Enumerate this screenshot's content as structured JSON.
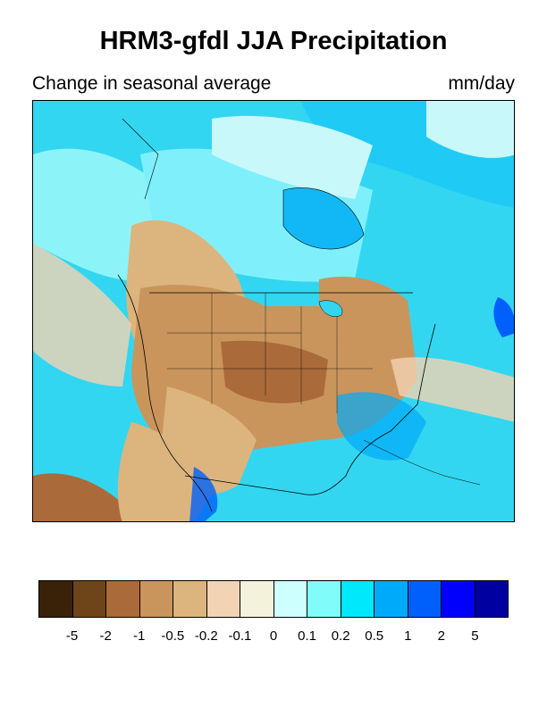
{
  "title": "HRM3-gfdl JJA Precipitation",
  "subtitle_left": "Change in seasonal average",
  "subtitle_right": "mm/day",
  "map": {
    "region": "North America",
    "legend": {
      "colors": [
        "#3a2209",
        "#6e4519",
        "#aa6a3a",
        "#c9955c",
        "#dcb47e",
        "#f2d3b4",
        "#f5f2dc",
        "#ccfffe",
        "#80fcfb",
        "#00e8fb",
        "#00aafa",
        "#0060fb",
        "#0000fc",
        "#0000a0"
      ],
      "tick_labels": [
        "-5",
        "-2",
        "-1",
        "-0.5",
        "-0.2",
        "-0.1",
        "0",
        "0.1",
        "0.2",
        "0.5",
        "1",
        "2",
        "5"
      ]
    }
  }
}
